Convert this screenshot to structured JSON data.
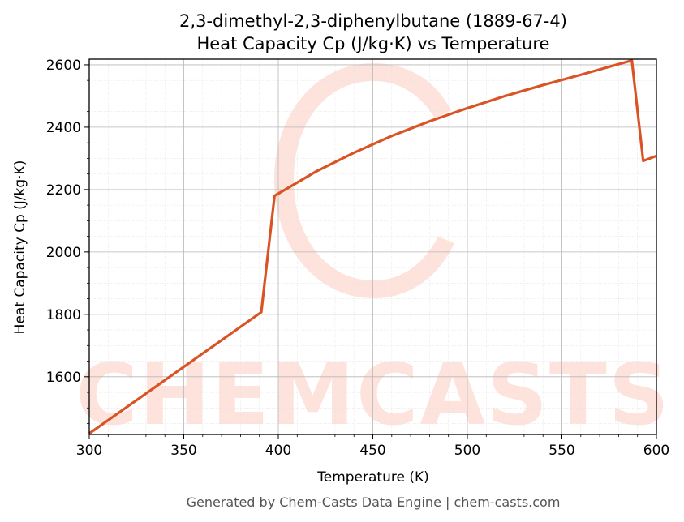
{
  "chart_data": {
    "type": "line",
    "title": "2,3-dimethyl-2,3-diphenylbutane (1889-67-4)",
    "subtitle": "Heat Capacity Cp (J/kg·K) vs Temperature",
    "xlabel": "Temperature (K)",
    "ylabel": "Heat Capacity Cp (J/kg·K)",
    "xlim": [
      300,
      600
    ],
    "ylim": [
      1415,
      2618
    ],
    "x_ticks": [
      300,
      350,
      400,
      450,
      500,
      550,
      600
    ],
    "y_ticks": [
      1600,
      1800,
      2000,
      2200,
      2400,
      2600
    ],
    "grid": true,
    "legend": "none",
    "series": [
      {
        "color": "#d95324",
        "x": [
          300,
          391,
          398,
          420,
          440,
          460,
          480,
          500,
          520,
          540,
          560,
          587,
          593,
          600
        ],
        "y": [
          1418,
          1807,
          2180,
          2258,
          2318,
          2372,
          2419,
          2461,
          2500,
          2535,
          2568,
          2614,
          2292,
          2308
        ]
      }
    ]
  },
  "watermark": {
    "text": "CHEMCASTS",
    "color": "#fde3dc"
  },
  "footer": "Generated by Chem-Casts Data Engine | chem-casts.com"
}
